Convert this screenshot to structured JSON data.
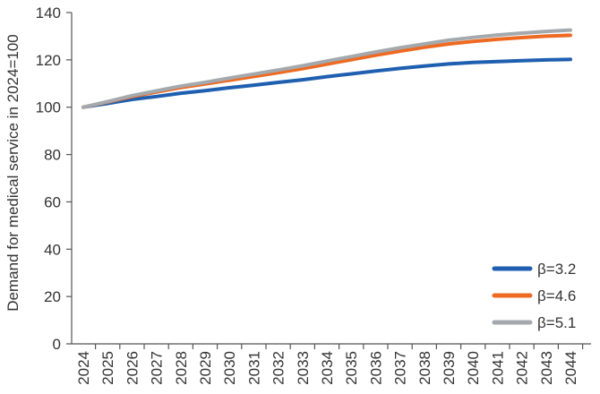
{
  "chart_data": {
    "type": "line",
    "xlabel": "",
    "ylabel": "Demand for medical service in 2024=100",
    "ylim": [
      0,
      140
    ],
    "yticks": [
      0,
      20,
      40,
      60,
      80,
      100,
      120,
      140
    ],
    "grid": false,
    "legend_position": "bottom-right",
    "x": [
      "2024",
      "2025",
      "2026",
      "2027",
      "2028",
      "2029",
      "2030",
      "2031",
      "2032",
      "2033",
      "2034",
      "2035",
      "2036",
      "2037",
      "2038",
      "2039",
      "2040",
      "2041",
      "2042",
      "2043",
      "2044"
    ],
    "series": [
      {
        "name": "β=3.2",
        "color": "#1f5fb0",
        "values": [
          100,
          101.6,
          103.3,
          104.5,
          105.9,
          107.0,
          108.2,
          109.3,
          110.5,
          111.6,
          112.9,
          114.1,
          115.3,
          116.4,
          117.4,
          118.3,
          118.9,
          119.3,
          119.7,
          120.0,
          120.2
        ]
      },
      {
        "name": "β=4.6",
        "color": "#ee6a22",
        "values": [
          100,
          102.2,
          104.5,
          106.4,
          108.3,
          109.8,
          111.4,
          113.0,
          114.6,
          116.3,
          118.2,
          120.1,
          122.0,
          123.7,
          125.3,
          126.7,
          127.8,
          128.7,
          129.4,
          130.0,
          130.4
        ]
      },
      {
        "name": "β=5.1",
        "color": "#a4a9ae",
        "values": [
          100,
          102.4,
          104.9,
          106.9,
          108.9,
          110.5,
          112.3,
          114.0,
          115.7,
          117.5,
          119.5,
          121.4,
          123.3,
          125.1,
          126.7,
          128.3,
          129.5,
          130.5,
          131.3,
          132.0,
          132.6
        ]
      }
    ]
  }
}
